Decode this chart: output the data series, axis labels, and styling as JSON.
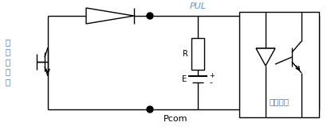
{
  "bg_color": "#ffffff",
  "line_color": "#000000",
  "text_color": "#000000",
  "label_pul": "PUL",
  "label_pcom": "Pcom",
  "label_R": "R",
  "label_E": "E",
  "label_plus": "+",
  "label_minus": "-",
  "label_left": "转\n换\n器\n内\n部",
  "label_right": "用户设备",
  "label_pul_color": "#5b9bd5",
  "label_left_color": "#4472c4",
  "label_right_color": "#4472c4",
  "figsize": [
    4.2,
    1.64
  ],
  "dpi": 100
}
